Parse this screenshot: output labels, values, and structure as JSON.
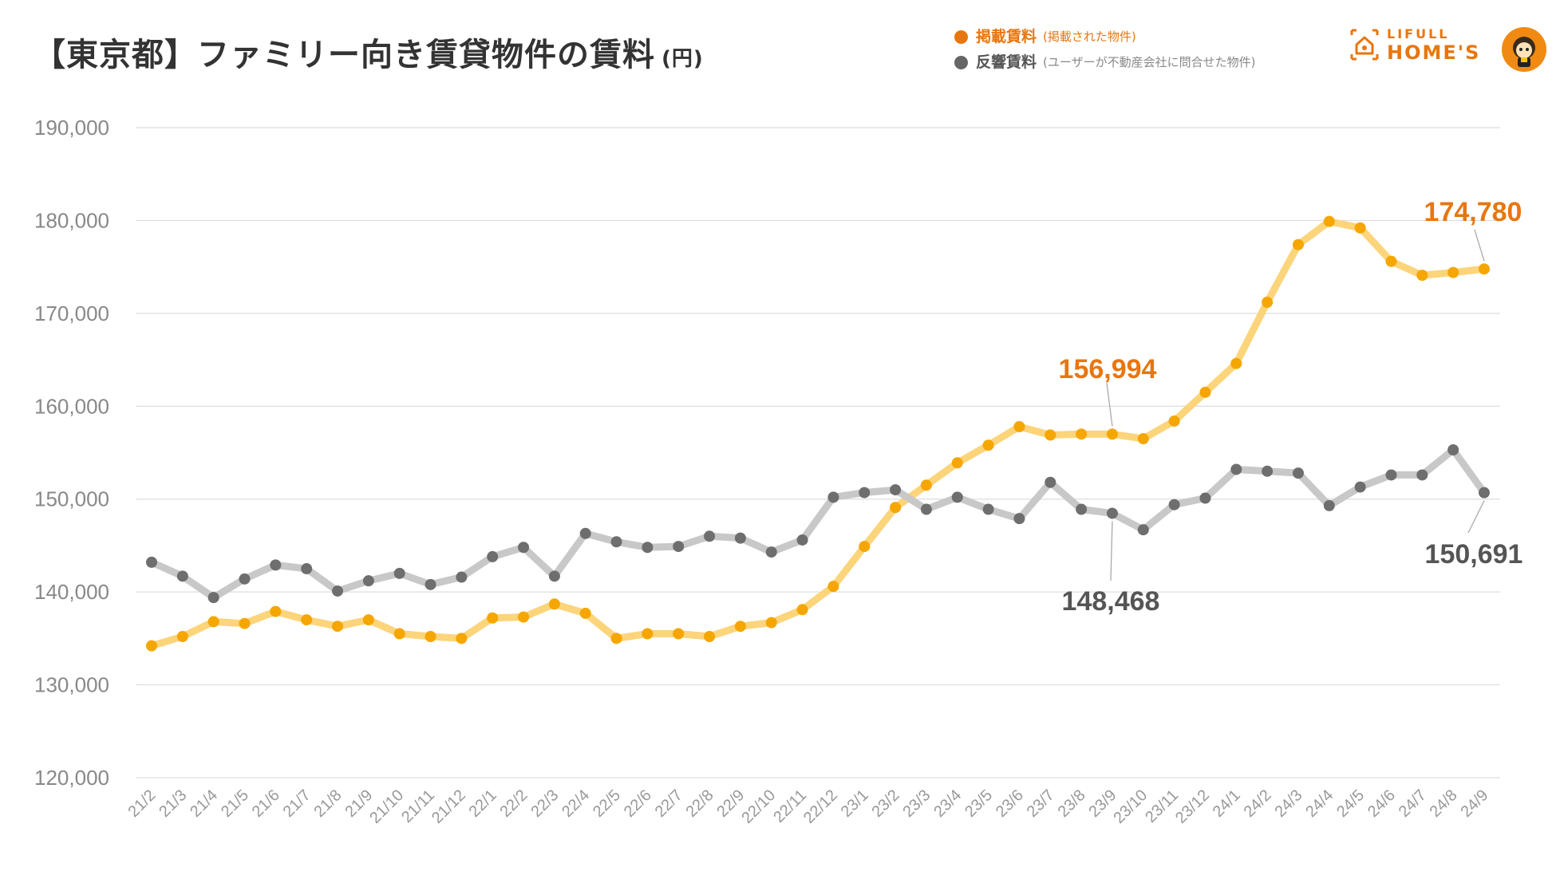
{
  "title": {
    "main": "【東京都】ファミリー向き賃貸物件の賃料",
    "unit": "(円)"
  },
  "legend": [
    {
      "label": "掲載賃料",
      "note": "(掲載された物件)",
      "color": "#e8760e"
    },
    {
      "label": "反響賃料",
      "note": "(ユーザーが不動産会社に問合せた物件)",
      "color": "#666666"
    }
  ],
  "logo": {
    "line1": "LIFULL",
    "line2": "HOME'S",
    "color": "#e8760e"
  },
  "chart_data": {
    "type": "line",
    "ylim": [
      120000,
      190000
    ],
    "yticks": [
      120000,
      130000,
      140000,
      150000,
      160000,
      170000,
      180000,
      190000
    ],
    "ytick_labels": [
      "120,000",
      "130,000",
      "140,000",
      "150,000",
      "160,000",
      "170,000",
      "180,000",
      "190,000"
    ],
    "grid": true,
    "categories": [
      "21/2",
      "21/3",
      "21/4",
      "21/5",
      "21/6",
      "21/7",
      "21/8",
      "21/9",
      "21/10",
      "21/11",
      "21/12",
      "22/1",
      "22/2",
      "22/3",
      "22/4",
      "22/5",
      "22/6",
      "22/7",
      "22/8",
      "22/9",
      "22/10",
      "22/11",
      "22/12",
      "23/1",
      "23/2",
      "23/3",
      "23/4",
      "23/5",
      "23/6",
      "23/7",
      "23/8",
      "23/9",
      "23/10",
      "23/11",
      "23/12",
      "24/1",
      "24/2",
      "24/3",
      "24/4",
      "24/5",
      "24/6",
      "24/7",
      "24/8",
      "24/9"
    ],
    "series": [
      {
        "name": "掲載賃料",
        "line_color": "#fcd47a",
        "dot_color": "#f5a600",
        "values": [
          134200,
          135200,
          136800,
          136600,
          137900,
          137000,
          136300,
          137000,
          135500,
          135200,
          135000,
          137200,
          137300,
          138700,
          137700,
          135000,
          135500,
          135500,
          135200,
          136300,
          136700,
          138100,
          140600,
          144900,
          149100,
          151500,
          153900,
          155800,
          157800,
          156900,
          157000,
          156994,
          156500,
          158400,
          161500,
          164600,
          171200,
          177400,
          179900,
          179200,
          175600,
          174100,
          174400,
          174780
        ],
        "callouts": [
          {
            "index": 31,
            "text": "156,994",
            "color": "#e8760e"
          },
          {
            "index": 43,
            "text": "174,780",
            "color": "#e8760e"
          }
        ]
      },
      {
        "name": "反響賃料",
        "line_color": "#c8c8c8",
        "dot_color": "#6e6e6e",
        "values": [
          143200,
          141700,
          139400,
          141400,
          142900,
          142500,
          140100,
          141200,
          142000,
          140800,
          141600,
          143800,
          144800,
          141700,
          146300,
          145400,
          144800,
          144900,
          146000,
          145800,
          144300,
          145600,
          150200,
          150700,
          151000,
          148900,
          150200,
          148900,
          147900,
          151800,
          148900,
          148468,
          146700,
          149400,
          150100,
          153200,
          153000,
          152800,
          149300,
          151300,
          152600,
          152600,
          155300,
          150691
        ],
        "callouts": [
          {
            "index": 31,
            "text": "148,468",
            "color": "#555555"
          },
          {
            "index": 43,
            "text": "150,691",
            "color": "#555555"
          }
        ]
      }
    ]
  }
}
